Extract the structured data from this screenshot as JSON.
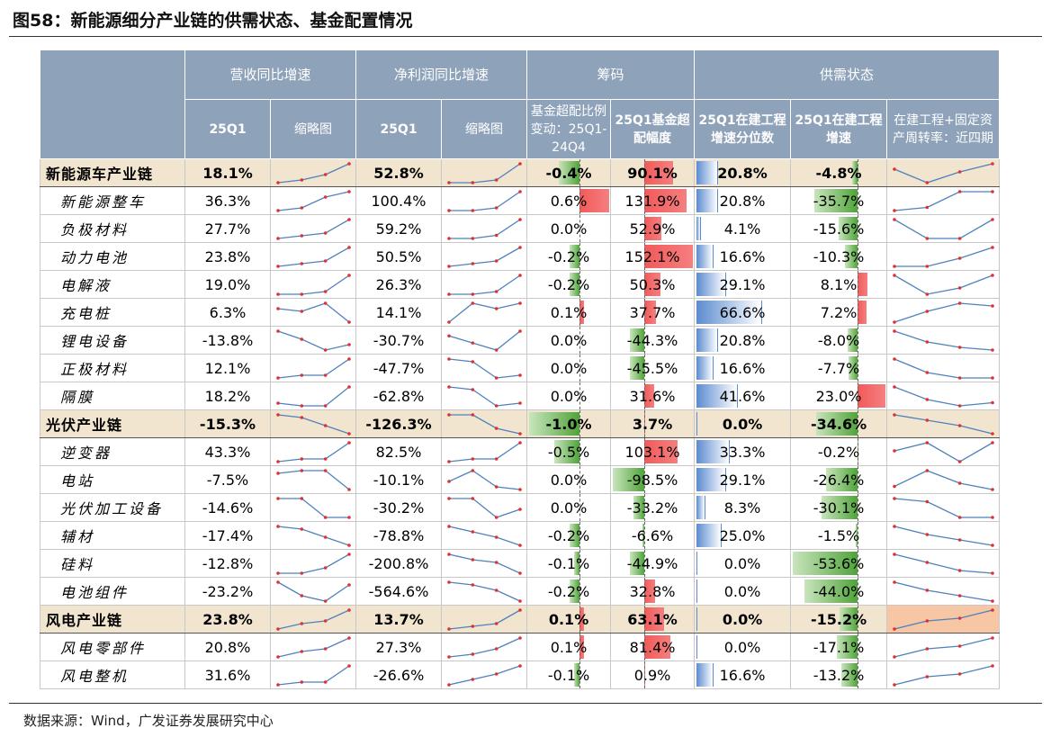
{
  "title": "图58：新能源细分产业链的供需状态、基金配置情况",
  "table": {
    "header": {
      "group_headers": [
        "营收同比增速",
        "净利润同比增速",
        "筹码",
        "供需状态"
      ],
      "columns": [
        "25Q1",
        "缩略图",
        "25Q1",
        "缩略图",
        "基金超配比例变动：25Q1-24Q4",
        "25Q1基金超配幅度",
        "25Q1在建工程增速分位数",
        "25Q1在建工程增速",
        "在建工程+固定资产周转率：近四期"
      ]
    },
    "rows": [
      {
        "name": "新能源车产业链",
        "group": true,
        "cells": [
          "18.1%",
          "52.8%",
          "-0.4%",
          "90.1%",
          "20.8%",
          "-4.8%"
        ],
        "trends": [
          [
            1,
            2,
            4,
            8
          ],
          [
            1,
            1,
            2,
            8
          ],
          [
            6,
            1,
            5,
            8
          ]
        ]
      },
      {
        "name": "新能源整车",
        "group": false,
        "cells": [
          "36.3%",
          "100.4%",
          "0.6%",
          "131.9%",
          "20.8%",
          "-35.7%"
        ],
        "trends": [
          [
            1,
            2,
            6,
            8
          ],
          [
            1,
            1,
            2,
            8
          ],
          [
            2,
            3,
            8,
            8
          ]
        ]
      },
      {
        "name": "负极材料",
        "group": false,
        "cells": [
          "27.7%",
          "59.2%",
          "0.0%",
          "52.9%",
          "4.1%",
          "-15.6%"
        ],
        "trends": [
          [
            1,
            2,
            3,
            8
          ],
          [
            2,
            2,
            3,
            8
          ],
          [
            8,
            1,
            1,
            8
          ]
        ]
      },
      {
        "name": "动力电池",
        "group": false,
        "cells": [
          "23.8%",
          "50.5%",
          "-0.2%",
          "152.1%",
          "16.6%",
          "-10.3%"
        ],
        "trends": [
          [
            1,
            2,
            3,
            8
          ],
          [
            1,
            2,
            3,
            8
          ],
          [
            1,
            1,
            4,
            8
          ]
        ]
      },
      {
        "name": "电解液",
        "group": false,
        "cells": [
          "19.0%",
          "26.3%",
          "-0.2%",
          "50.3%",
          "29.1%",
          "8.1%"
        ],
        "trends": [
          [
            1,
            1,
            2,
            8
          ],
          [
            1,
            1,
            2,
            8
          ],
          [
            8,
            2,
            4,
            8
          ]
        ]
      },
      {
        "name": "充电桩",
        "group": false,
        "cells": [
          "6.3%",
          "14.1%",
          "0.1%",
          "37.7%",
          "66.6%",
          "7.2%"
        ],
        "trends": [
          [
            6,
            5,
            8,
            1
          ],
          [
            1,
            8,
            6,
            8
          ],
          [
            1,
            5,
            8,
            7
          ]
        ]
      },
      {
        "name": "锂电设备",
        "group": false,
        "cells": [
          "-13.8%",
          "-30.7%",
          "0.0%",
          "-44.3%",
          "20.8%",
          "-8.0%"
        ],
        "trends": [
          [
            8,
            5,
            1,
            3
          ],
          [
            7,
            4,
            1,
            9
          ],
          [
            8,
            4,
            2,
            1
          ]
        ]
      },
      {
        "name": "正极材料",
        "group": false,
        "cells": [
          "12.1%",
          "-47.7%",
          "0.0%",
          "-45.5%",
          "16.6%",
          "-7.7%"
        ],
        "trends": [
          [
            1,
            2,
            2,
            8
          ],
          [
            8,
            7,
            1,
            2
          ],
          [
            8,
            3,
            1,
            1
          ]
        ]
      },
      {
        "name": "隔膜",
        "group": false,
        "cells": [
          "18.2%",
          "-62.8%",
          "0.0%",
          "31.6%",
          "41.6%",
          "23.0%"
        ],
        "trends": [
          [
            2,
            1,
            1,
            8
          ],
          [
            8,
            7,
            1,
            2
          ],
          [
            7,
            3,
            1,
            2
          ]
        ]
      },
      {
        "name": "光伏产业链",
        "group": true,
        "cells": [
          "-15.3%",
          "-126.3%",
          "-1.0%",
          "3.7%",
          "0.0%",
          "-34.6%"
        ],
        "trends": [
          [
            8,
            7,
            4,
            1
          ],
          [
            8,
            8,
            3,
            1
          ],
          [
            8,
            6,
            4,
            1
          ]
        ]
      },
      {
        "name": "逆变器",
        "group": false,
        "cells": [
          "43.3%",
          "82.5%",
          "-0.5%",
          "103.1%",
          "33.3%",
          "-0.2%"
        ],
        "trends": [
          [
            1,
            2,
            2,
            8
          ],
          [
            1,
            2,
            2,
            8
          ],
          [
            5,
            8,
            1,
            8
          ]
        ]
      },
      {
        "name": "电站",
        "group": false,
        "cells": [
          "-7.5%",
          "-10.1%",
          "0.0%",
          "-98.5%",
          "29.1%",
          "-26.4%"
        ],
        "trends": [
          [
            7,
            8,
            8,
            1
          ],
          [
            4,
            8,
            2,
            1
          ],
          [
            3,
            8,
            4,
            2
          ]
        ]
      },
      {
        "name": "光伏加工设备",
        "group": false,
        "cells": [
          "-14.6%",
          "-30.2%",
          "0.0%",
          "-33.2%",
          "8.3%",
          "-30.1%"
        ],
        "trends": [
          [
            8,
            8,
            1,
            1
          ],
          [
            8,
            8,
            1,
            4
          ],
          [
            8,
            7,
            2,
            2
          ]
        ]
      },
      {
        "name": "辅材",
        "group": false,
        "cells": [
          "-17.4%",
          "-78.8%",
          "-0.2%",
          "-6.6%",
          "25.0%",
          "-1.5%"
        ],
        "trends": [
          [
            8,
            7,
            4,
            1
          ],
          [
            8,
            6,
            4,
            1
          ],
          [
            8,
            5,
            3,
            1
          ]
        ]
      },
      {
        "name": "硅料",
        "group": false,
        "cells": [
          "-12.8%",
          "-200.8%",
          "-0.1%",
          "-44.9%",
          "0.0%",
          "-53.6%"
        ],
        "trends": [
          [
            1,
            1,
            3,
            8
          ],
          [
            8,
            6,
            5,
            1
          ],
          [
            8,
            5,
            2,
            1
          ]
        ]
      },
      {
        "name": "电池组件",
        "group": false,
        "cells": [
          "-23.2%",
          "-564.6%",
          "-0.2%",
          "32.8%",
          "0.0%",
          "-44.0%"
        ],
        "trends": [
          [
            8,
            3,
            1,
            7
          ],
          [
            8,
            7,
            5,
            1
          ],
          [
            8,
            5,
            3,
            1
          ]
        ]
      },
      {
        "name": "风电产业链",
        "group": true,
        "cells": [
          "23.8%",
          "13.7%",
          "0.1%",
          "63.1%",
          "0.0%",
          "-15.2%"
        ],
        "trends": [
          [
            1,
            3,
            4,
            8
          ],
          [
            1,
            2,
            3,
            8
          ],
          [
            1,
            4,
            5,
            8
          ]
        ]
      },
      {
        "name": "风电零部件",
        "group": false,
        "cells": [
          "20.8%",
          "27.3%",
          "0.1%",
          "81.4%",
          "0.0%",
          "-17.1%"
        ],
        "trends": [
          [
            1,
            3,
            4,
            8
          ],
          [
            1,
            2,
            4,
            8
          ],
          [
            1,
            4,
            5,
            8
          ]
        ]
      },
      {
        "name": "风电整机",
        "group": false,
        "cells": [
          "31.6%",
          "-26.6%",
          "-0.1%",
          "0.9%",
          "16.6%",
          "-13.2%"
        ],
        "trends": [
          [
            1,
            2,
            2,
            8
          ],
          [
            1,
            3,
            5,
            8
          ],
          [
            1,
            4,
            5,
            8
          ]
        ]
      }
    ]
  },
  "source": "数据来源：Wind，广发证券发展研究中心"
}
